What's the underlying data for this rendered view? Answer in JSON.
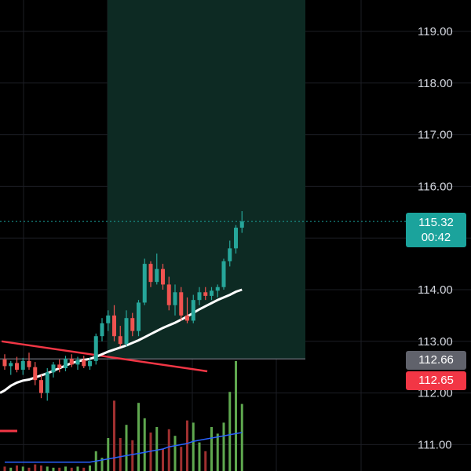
{
  "chart_data": {
    "type": "candlestick",
    "y_axis": {
      "ticks": [
        "119.00",
        "118.00",
        "117.00",
        "116.00",
        "115.00",
        "114.00",
        "113.00",
        "112.00",
        "111.00"
      ],
      "range": [
        110.5,
        119.6
      ],
      "side": "right"
    },
    "grid": true,
    "last_price": {
      "value": "115.32",
      "countdown": "00:42",
      "color": "#1ba39c"
    },
    "price_tags": [
      {
        "value": "112.66",
        "color": "#60626b"
      },
      {
        "value": "112.65",
        "color": "#f23645"
      }
    ],
    "highlight_zone": {
      "from_price": 112.66,
      "to_price": 119.6,
      "color": "#0d2a23"
    },
    "candles": [
      {
        "o": 112.65,
        "h": 112.75,
        "l": 112.45,
        "c": 112.52,
        "dir": "down"
      },
      {
        "o": 112.52,
        "h": 112.62,
        "l": 112.35,
        "c": 112.58,
        "dir": "up"
      },
      {
        "o": 112.58,
        "h": 112.7,
        "l": 112.4,
        "c": 112.45,
        "dir": "down"
      },
      {
        "o": 112.45,
        "h": 112.68,
        "l": 112.35,
        "c": 112.62,
        "dir": "up"
      },
      {
        "o": 112.62,
        "h": 112.78,
        "l": 112.45,
        "c": 112.5,
        "dir": "down"
      },
      {
        "o": 112.5,
        "h": 112.6,
        "l": 112.15,
        "c": 112.25,
        "dir": "down"
      },
      {
        "o": 112.25,
        "h": 112.35,
        "l": 111.9,
        "c": 112.0,
        "dir": "down"
      },
      {
        "o": 112.0,
        "h": 112.48,
        "l": 111.85,
        "c": 112.4,
        "dir": "up"
      },
      {
        "o": 112.4,
        "h": 112.6,
        "l": 112.3,
        "c": 112.55,
        "dir": "up"
      },
      {
        "o": 112.55,
        "h": 112.65,
        "l": 112.4,
        "c": 112.48,
        "dir": "down"
      },
      {
        "o": 112.48,
        "h": 112.72,
        "l": 112.42,
        "c": 112.66,
        "dir": "up"
      },
      {
        "o": 112.66,
        "h": 112.75,
        "l": 112.5,
        "c": 112.55,
        "dir": "down"
      },
      {
        "o": 112.55,
        "h": 112.7,
        "l": 112.45,
        "c": 112.64,
        "dir": "up"
      },
      {
        "o": 112.64,
        "h": 112.72,
        "l": 112.48,
        "c": 112.52,
        "dir": "down"
      },
      {
        "o": 112.52,
        "h": 112.68,
        "l": 112.45,
        "c": 112.62,
        "dir": "up"
      },
      {
        "o": 112.62,
        "h": 113.15,
        "l": 112.55,
        "c": 113.1,
        "dir": "up"
      },
      {
        "o": 113.1,
        "h": 113.45,
        "l": 113.0,
        "c": 113.35,
        "dir": "up"
      },
      {
        "o": 113.35,
        "h": 113.6,
        "l": 113.2,
        "c": 113.5,
        "dir": "up"
      },
      {
        "o": 113.5,
        "h": 113.7,
        "l": 113.0,
        "c": 113.1,
        "dir": "down"
      },
      {
        "o": 113.1,
        "h": 113.3,
        "l": 112.9,
        "c": 112.95,
        "dir": "down"
      },
      {
        "o": 112.95,
        "h": 113.6,
        "l": 112.9,
        "c": 113.45,
        "dir": "up"
      },
      {
        "o": 113.45,
        "h": 113.55,
        "l": 113.1,
        "c": 113.2,
        "dir": "down"
      },
      {
        "o": 113.2,
        "h": 113.8,
        "l": 113.1,
        "c": 113.75,
        "dir": "up"
      },
      {
        "o": 113.75,
        "h": 114.6,
        "l": 113.7,
        "c": 114.5,
        "dir": "up"
      },
      {
        "o": 114.5,
        "h": 114.55,
        "l": 114.05,
        "c": 114.15,
        "dir": "down"
      },
      {
        "o": 114.15,
        "h": 114.7,
        "l": 114.1,
        "c": 114.4,
        "dir": "up"
      },
      {
        "o": 114.4,
        "h": 114.5,
        "l": 114.0,
        "c": 114.1,
        "dir": "down"
      },
      {
        "o": 114.1,
        "h": 114.25,
        "l": 113.6,
        "c": 113.7,
        "dir": "down"
      },
      {
        "o": 113.7,
        "h": 114.1,
        "l": 113.5,
        "c": 113.95,
        "dir": "up"
      },
      {
        "o": 113.95,
        "h": 114.05,
        "l": 113.4,
        "c": 113.5,
        "dir": "down"
      },
      {
        "o": 113.5,
        "h": 113.85,
        "l": 113.35,
        "c": 113.4,
        "dir": "down"
      },
      {
        "o": 113.4,
        "h": 113.9,
        "l": 113.35,
        "c": 113.8,
        "dir": "up"
      },
      {
        "o": 113.8,
        "h": 114.05,
        "l": 113.7,
        "c": 113.95,
        "dir": "up"
      },
      {
        "o": 113.95,
        "h": 114.05,
        "l": 113.8,
        "c": 113.88,
        "dir": "down"
      },
      {
        "o": 113.88,
        "h": 114.05,
        "l": 113.8,
        "c": 113.98,
        "dir": "up"
      },
      {
        "o": 113.98,
        "h": 114.1,
        "l": 113.85,
        "c": 114.05,
        "dir": "up"
      },
      {
        "o": 114.05,
        "h": 114.6,
        "l": 114.0,
        "c": 114.55,
        "dir": "up"
      },
      {
        "o": 114.55,
        "h": 114.95,
        "l": 114.45,
        "c": 114.8,
        "dir": "up"
      },
      {
        "o": 114.8,
        "h": 115.25,
        "l": 114.7,
        "c": 115.2,
        "dir": "up"
      },
      {
        "o": 115.2,
        "h": 115.52,
        "l": 115.1,
        "c": 115.32,
        "dir": "up"
      }
    ],
    "moving_average": [
      112.05,
      112.14,
      112.2,
      112.24,
      112.26,
      112.3,
      112.34,
      112.38,
      112.43,
      112.48,
      112.53,
      112.58,
      112.61,
      112.64,
      112.66,
      112.7,
      112.75,
      112.8,
      112.84,
      112.88,
      112.92,
      112.97,
      113.02,
      113.08,
      113.14,
      113.2,
      113.26,
      113.31,
      113.36,
      113.42,
      113.48,
      113.55,
      113.62,
      113.68,
      113.74,
      113.8,
      113.85,
      113.9,
      113.96,
      114.0
    ],
    "trendline": {
      "from": [
        -0.5,
        113.0
      ],
      "to": [
        33.3,
        112.42
      ],
      "color": "#f23645"
    },
    "volume_max": 100,
    "volumes": [
      4,
      3,
      5,
      4,
      3,
      6,
      5,
      4,
      3,
      3,
      4,
      3,
      4,
      3,
      5,
      18,
      12,
      30,
      64,
      30,
      42,
      28,
      62,
      48,
      35,
      40,
      20,
      38,
      32,
      22,
      46,
      44,
      26,
      18,
      40,
      34,
      44,
      72,
      100,
      61
    ],
    "volume_ma": [
      8,
      8,
      8,
      8,
      8,
      8,
      8,
      8,
      8,
      8,
      8,
      8,
      8,
      8,
      8,
      9,
      10,
      11,
      12,
      13,
      14,
      15,
      16,
      17,
      18,
      19,
      20,
      22,
      23,
      24,
      25,
      27,
      28,
      29,
      30,
      31,
      32,
      33,
      34,
      35
    ],
    "colors": {
      "up": "#26a69a",
      "down": "#ef5350",
      "volume_up": "#5fa84f",
      "volume_down": "#a03030",
      "ma": "#ffffff",
      "volume_ma": "#2962ff"
    }
  }
}
